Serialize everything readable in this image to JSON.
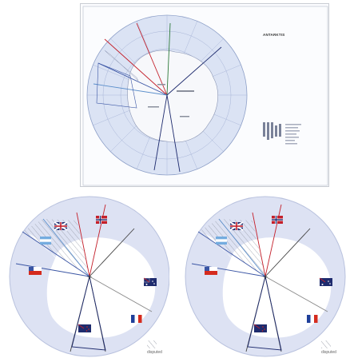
{
  "poster": {
    "title": "ANTARKTIS",
    "subtitle": "",
    "map_label": ""
  },
  "panels": [
    {
      "legend": {
        "disputed_label": "disputed"
      },
      "flags": [
        "norway-flag",
        "united-kingdom-flag",
        "argentina-flag",
        "chile-flag",
        "australia-flag",
        "france-flag",
        "new-zealand-flag"
      ]
    },
    {
      "legend": {
        "disputed_label": "disputed"
      },
      "flags": [
        "norway-flag",
        "united-kingdom-flag",
        "argentina-flag",
        "chile-flag",
        "australia-flag",
        "france-flag",
        "new-zealand-flag"
      ]
    }
  ],
  "colors": {
    "ocean": "#dde2f3",
    "land": "#ffffff",
    "norway": "#c4202b",
    "uk": "#c4202b",
    "argentina": "#5a8ecb",
    "chile": "#3a55a4",
    "australia": "#1e2b6e",
    "france": "#1f3f9a",
    "new_zealand": "#1e2b6e"
  }
}
